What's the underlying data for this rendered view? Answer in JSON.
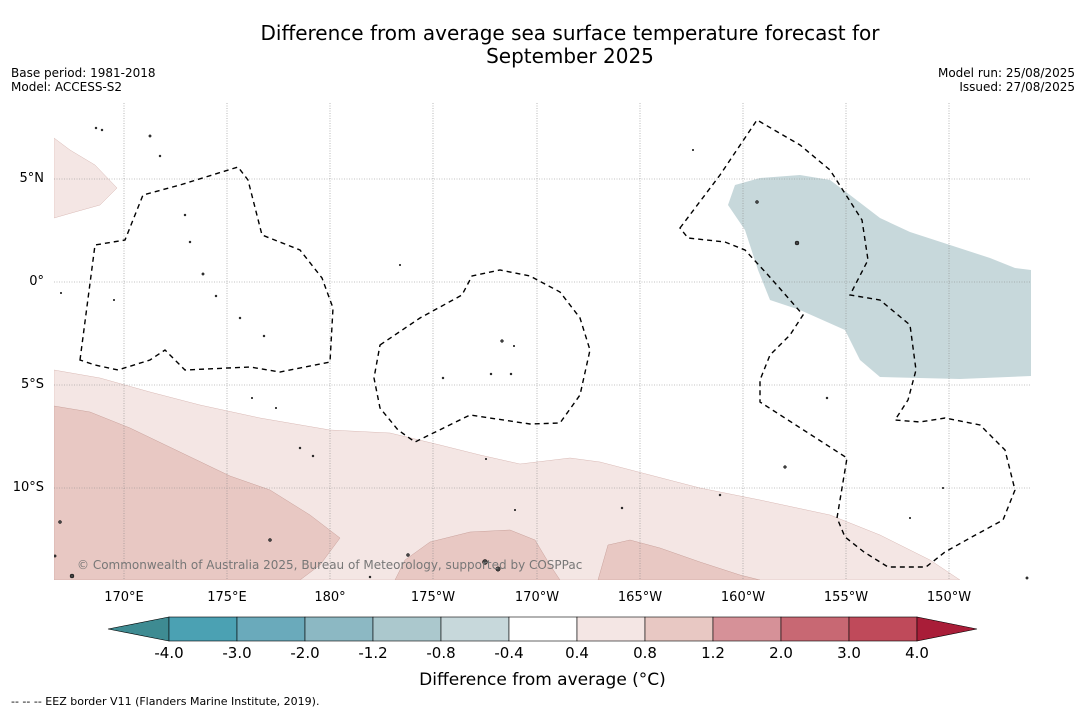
{
  "title_line1": "Difference from average sea surface temperature forecast for",
  "title_line2": "September 2025",
  "base_period": "Base period: 1981-2018",
  "model": "Model: ACCESS-S2",
  "model_run": "Model run: 25/08/2025",
  "issued": "Issued: 27/08/2025",
  "lat_labels": [
    "5°N",
    "0°",
    "5°S",
    "10°S"
  ],
  "lon_labels": [
    "170°E",
    "175°E",
    "180°",
    "175°W",
    "170°W",
    "165°W",
    "160°W",
    "155°W",
    "150°W"
  ],
  "colorbar": {
    "title": "Difference from average (°C)",
    "ticks": [
      "-4.0",
      "-3.0",
      "-2.0",
      "-1.2",
      "-0.8",
      "-0.4",
      "0.4",
      "0.8",
      "1.2",
      "2.0",
      "3.0",
      "4.0"
    ],
    "colors": [
      "#3e8b92",
      "#4ba1b3",
      "#6aaabb",
      "#8cb8c3",
      "#abc8cd",
      "#c7d8db",
      "#ffffff",
      "#f4e6e4",
      "#e8c8c3",
      "#d69198",
      "#c86873",
      "#bf4a5a",
      "#a91d38"
    ]
  },
  "copyright": "© Commonwealth of Australia 2025, Bureau of Meteorology, supported by COSPPac",
  "eez_note": "--  --  -- EEZ border V11 (Flanders Marine Institute, 2019)."
}
